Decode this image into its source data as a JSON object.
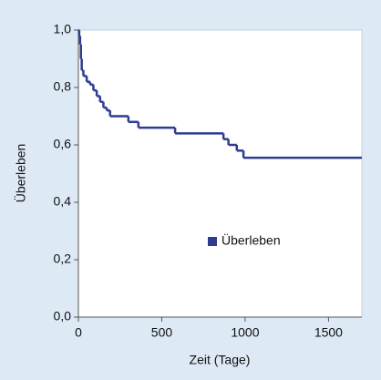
{
  "chart_data": {
    "type": "step",
    "xlabel": "Zeit (Tage)",
    "ylabel": "Überleben",
    "x": [
      0,
      5,
      10,
      15,
      20,
      30,
      50,
      70,
      90,
      110,
      130,
      150,
      170,
      190,
      300,
      360,
      580,
      870,
      900,
      950,
      990,
      1700
    ],
    "series": [
      {
        "name": "Überleben",
        "color": "#2e3d8f",
        "values": [
          1.0,
          0.98,
          0.95,
          0.9,
          0.86,
          0.84,
          0.82,
          0.81,
          0.79,
          0.77,
          0.75,
          0.73,
          0.72,
          0.7,
          0.68,
          0.66,
          0.64,
          0.62,
          0.6,
          0.58,
          0.555,
          0.555
        ]
      }
    ],
    "xlim": [
      0,
      1700
    ],
    "xticks": [
      0,
      500,
      1000,
      1500
    ],
    "ylim": [
      0,
      1
    ],
    "yticks": [
      {
        "value": 0,
        "label": "0,0"
      },
      {
        "value": 0.2,
        "label": "0,2"
      },
      {
        "value": 0.4,
        "label": "0,4"
      },
      {
        "value": 0.6,
        "label": "0,6"
      },
      {
        "value": 0.8,
        "label": "0,8"
      },
      {
        "value": 1,
        "label": "1,0"
      }
    ],
    "grid": false,
    "legend_position": "center"
  }
}
